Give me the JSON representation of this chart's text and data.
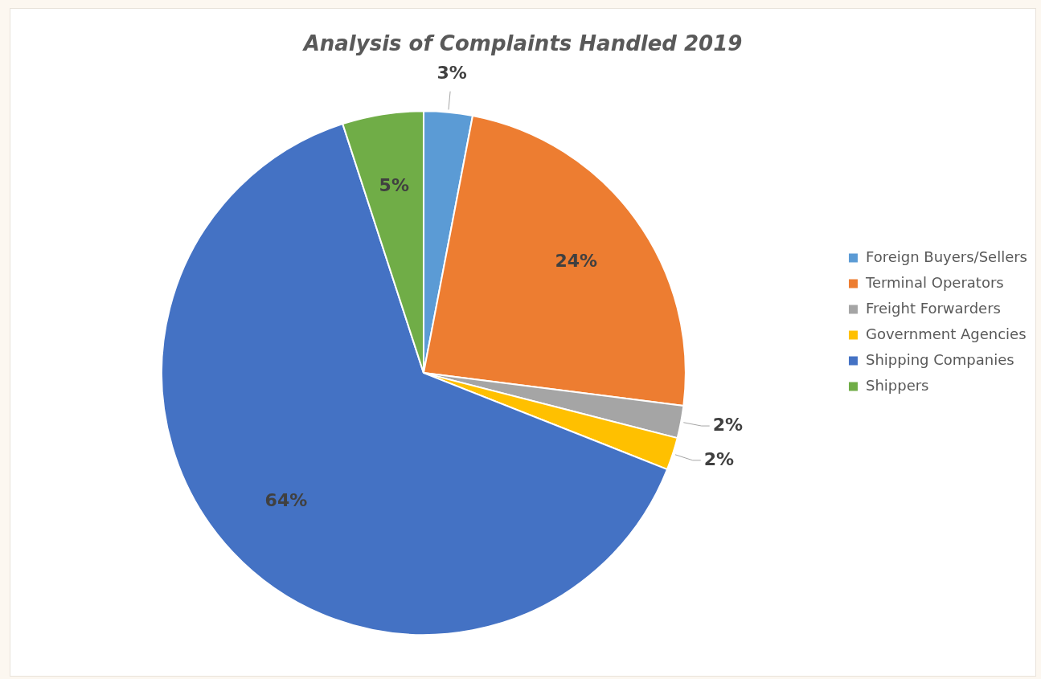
{
  "chart_data": {
    "type": "pie",
    "title": "Analysis of Complaints Handled 2019",
    "categories": [
      "Foreign Buyers/Sellers",
      "Terminal Operators",
      "Freight Forwarders",
      "Government Agencies",
      "Shipping Companies",
      "Shippers"
    ],
    "values": [
      3,
      24,
      2,
      2,
      64,
      5
    ],
    "colors": [
      "#5b9bd5",
      "#ed7d31",
      "#a5a5a5",
      "#ffc000",
      "#4472c4",
      "#70ad47"
    ],
    "value_labels": [
      "3%",
      "24%",
      "2%",
      "2%",
      "64%",
      "5%"
    ],
    "legend": "right"
  }
}
